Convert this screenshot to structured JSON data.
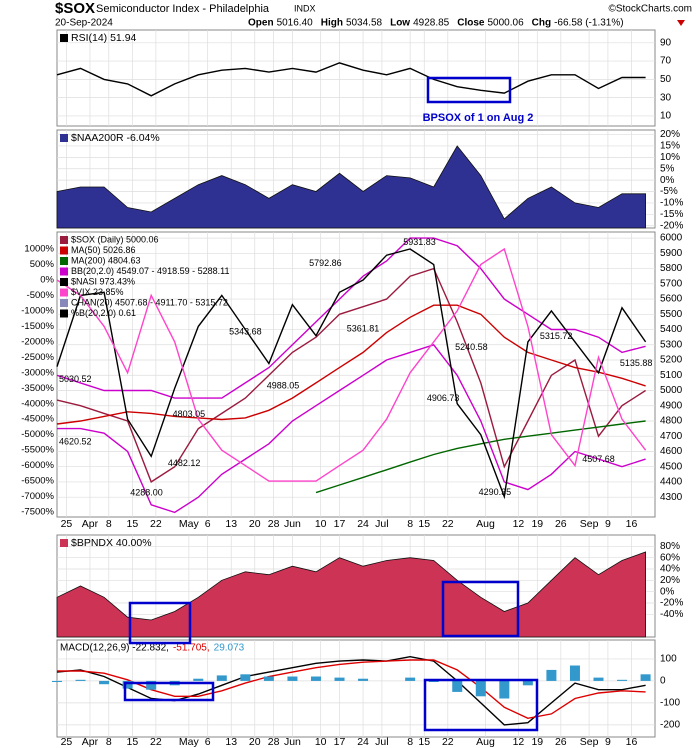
{
  "header": {
    "symbol": "$SOX",
    "name": "Semiconductor Index - Philadelphia",
    "exchange": "INDX",
    "date": "20-Sep-2024",
    "credit": "©StockCharts.com",
    "quote": [
      {
        "label": "Open",
        "value": "5016.40"
      },
      {
        "label": "High",
        "value": "5034.58"
      },
      {
        "label": "Low",
        "value": "4928.85"
      },
      {
        "label": "Close",
        "value": "5000.06"
      },
      {
        "label": "Chg",
        "value": "-66.58 (-1.31%)"
      }
    ]
  },
  "chart_data": {
    "x": [
      0,
      5,
      10,
      15,
      20,
      25,
      30,
      35,
      40,
      45,
      50,
      55,
      60,
      65,
      70,
      75,
      80,
      85,
      90,
      95,
      100,
      105,
      110,
      115,
      120,
      125
    ],
    "xlim": [
      0,
      127
    ],
    "xticks": [
      {
        "value": 2,
        "label": "25"
      },
      {
        "value": 7,
        "label": "Apr"
      },
      {
        "value": 11,
        "label": "8"
      },
      {
        "value": 16,
        "label": "15"
      },
      {
        "value": 21,
        "label": "22"
      },
      {
        "value": 28,
        "label": "May"
      },
      {
        "value": 32,
        "label": "6"
      },
      {
        "value": 37,
        "label": "13"
      },
      {
        "value": 42,
        "label": "20"
      },
      {
        "value": 46,
        "label": "28"
      },
      {
        "value": 50,
        "label": "Jun"
      },
      {
        "value": 56,
        "label": "10"
      },
      {
        "value": 60,
        "label": "17"
      },
      {
        "value": 65,
        "label": "24"
      },
      {
        "value": 69,
        "label": "Jul"
      },
      {
        "value": 75,
        "label": "8"
      },
      {
        "value": 78,
        "label": "15"
      },
      {
        "value": 83,
        "label": "22"
      },
      {
        "value": 91,
        "label": "Aug"
      },
      {
        "value": 98,
        "label": "12"
      },
      {
        "value": 102,
        "label": "19"
      },
      {
        "value": 107,
        "label": "26"
      },
      {
        "value": 113,
        "label": "Sep"
      },
      {
        "value": 117,
        "label": "9"
      },
      {
        "value": 122,
        "label": "16"
      }
    ],
    "panels": [
      {
        "type": "line",
        "annotation": "BPSOX of 1 on Aug 2",
        "ylim": [
          -1,
          104
        ],
        "yticks": [
          90,
          70,
          50,
          30,
          10
        ],
        "series": [
          {
            "name": "RSI(14) 51.94",
            "color": "#000000",
            "values": [
              55,
              62,
              50,
              45,
              32,
              45,
              55,
              60,
              62,
              58,
              62,
              58,
              68,
              60,
              55,
              62,
              50,
              42,
              38,
              35,
              48,
              55,
              55,
              40,
              52,
              52
            ]
          }
        ]
      },
      {
        "type": "area",
        "ylim": [
          -21,
          22
        ],
        "yticks": [
          {
            "value": 20,
            "label": "20%"
          },
          {
            "value": 15,
            "label": "15%"
          },
          {
            "value": 10,
            "label": "10%"
          },
          {
            "value": 5,
            "label": "5%"
          },
          {
            "value": 0,
            "label": "0%"
          },
          {
            "value": -5,
            "label": "-5%"
          },
          {
            "value": -10,
            "label": "-10%"
          },
          {
            "value": -15,
            "label": "-15%"
          },
          {
            "value": -20,
            "label": "-20%"
          }
        ],
        "series": [
          {
            "name": "$NAA200R -6.04%",
            "color": "#2e3192",
            "values": [
              -5,
              -3,
              -3,
              -12,
              -14,
              -8,
              -2,
              2,
              -2,
              -8,
              -2,
              -5,
              3,
              -5,
              2,
              1,
              -3,
              15,
              2,
              -17,
              -8,
              -3,
              -10,
              -12,
              -6,
              -6
            ]
          }
        ]
      },
      {
        "type": "line",
        "ylim": [
          4170,
          6040
        ],
        "yticks": [
          6000,
          5900,
          5800,
          5700,
          5600,
          5500,
          5400,
          5300,
          5200,
          5100,
          5000,
          4900,
          4800,
          4700,
          4600,
          4500,
          4400,
          4300
        ],
        "y2lim": [
          -7660,
          1550
        ],
        "y2ticks": [
          {
            "value": 1000,
            "label": "1000%"
          },
          {
            "value": 500,
            "label": "500%"
          },
          {
            "value": 0,
            "label": "0%"
          },
          {
            "value": -500,
            "label": "-500%"
          },
          {
            "value": -1000,
            "label": "-1000%"
          },
          {
            "value": -1500,
            "label": "-1500%"
          },
          {
            "value": -2000,
            "label": "-2000%"
          },
          {
            "value": -2500,
            "label": "-2500%"
          },
          {
            "value": -3000,
            "label": "-3000%"
          },
          {
            "value": -3500,
            "label": "-3500%"
          },
          {
            "value": -4000,
            "label": "-4000%"
          },
          {
            "value": -4500,
            "label": "-4500%"
          },
          {
            "value": -5000,
            "label": "-5000%"
          },
          {
            "value": -5500,
            "label": "-5500%"
          },
          {
            "value": -6000,
            "label": "-6000%"
          },
          {
            "value": -6500,
            "label": "-6500%"
          },
          {
            "value": -7000,
            "label": "-7000%"
          },
          {
            "value": -7500,
            "label": "-7500%"
          }
        ],
        "series": [
          {
            "name": "$SOX (Daily) 5000.06",
            "color": "#9b1b3f",
            "values": [
              4937,
              4900,
              4850,
              4800,
              4400,
              4500,
              4750,
              4850,
              4950,
              5100,
              5250,
              5350,
              5500,
              5550,
              5600,
              5750,
              5800,
              5450,
              5050,
              4500,
              4800,
              5100,
              5200,
              4700,
              4900,
              5000
            ]
          },
          {
            "name": "MA(50) 5026.86",
            "color": "#cc0000",
            "values": [
              4780,
              4800,
              4830,
              4860,
              4850,
              4830,
              4820,
              4810,
              4820,
              4870,
              4950,
              5050,
              5150,
              5250,
              5380,
              5480,
              5560,
              5560,
              5500,
              5350,
              5250,
              5200,
              5150,
              5120,
              5080,
              5030
            ]
          },
          {
            "name": "MA(200) 4804.63",
            "color": "#006600",
            "values": [
              null,
              null,
              null,
              null,
              null,
              null,
              null,
              null,
              null,
              null,
              null,
              4330,
              4380,
              4430,
              4480,
              4530,
              4580,
              4620,
              4650,
              4680,
              4700,
              4720,
              4740,
              4760,
              4780,
              4800
            ]
          },
          {
            "name": "BB(20,2.0) 4549.07 - 4918.59 - 5288.11",
            "color": "#cc00cc",
            "values": [
              5100,
              5050,
              5000,
              5000,
              5000,
              4950,
              4950,
              4950,
              5050,
              5150,
              5300,
              5450,
              5600,
              5750,
              5850,
              6000,
              6000,
              5950,
              5800,
              5600,
              5500,
              5400,
              5400,
              5350,
              5250,
              5290
            ]
          },
          {
            "color": "#cc00cc",
            "values": [
              4750,
              4750,
              4720,
              4600,
              4250,
              4200,
              4300,
              4450,
              4550,
              4650,
              4800,
              4900,
              5000,
              5100,
              5200,
              5250,
              5300,
              5100,
              4800,
              4400,
              4350,
              4450,
              4600,
              4550,
              4500,
              4550
            ]
          },
          {
            "name": "$NASI 973.43%",
            "color": "#000000",
            "axis": "y2",
            "values": [
              -2800,
              -500,
              -400,
              -4500,
              -5700,
              -3500,
              -1500,
              -500,
              -1600,
              -2700,
              -800,
              -1800,
              -400,
              0,
              800,
              1000,
              500,
              -4000,
              -5000,
              -7000,
              -2000,
              -1000,
              -2000,
              -3000,
              -900,
              -2000
            ]
          },
          {
            "name": "$VIX 23.85%",
            "color": "#ff44cc",
            "axis": "y2",
            "values": [
              0,
              -500,
              -1500,
              -3000,
              -500,
              -2000,
              -4500,
              -5500,
              -6000,
              -6500,
              -6500,
              -6500,
              -6000,
              -5500,
              -4500,
              -3000,
              -2000,
              -1000,
              500,
              1000,
              -1500,
              -5000,
              -6000,
              -2500,
              -4500,
              -5500
            ]
          }
        ],
        "indicators": [
          {
            "label": "CHAN(20) 4507.68 - 4911.70 - 5315.72",
            "color": "#8888bb"
          },
          {
            "label": "%B(20,2.0) 0.61",
            "color": "#000000"
          }
        ],
        "annotations": [
          {
            "x": 0,
            "value": 5030.52
          },
          {
            "x": 0,
            "value": 4620.52
          },
          {
            "x": 19,
            "value": 4288,
            "label": "4288.00"
          },
          {
            "x": 28,
            "value": 4803.05
          },
          {
            "x": 27,
            "value": 4482.12
          },
          {
            "x": 48,
            "value": 4988.05
          },
          {
            "x": 40,
            "value": 5343.68
          },
          {
            "x": 57,
            "value": 5792.86
          },
          {
            "x": 65,
            "value": 5361.81
          },
          {
            "x": 77,
            "value": 5931.83
          },
          {
            "x": 88,
            "value": 5240.58
          },
          {
            "x": 82,
            "value": 4906.73
          },
          {
            "x": 93,
            "value": 4290.35
          },
          {
            "x": 106,
            "value": 5315.72
          },
          {
            "x": 123,
            "value": 5135.88
          },
          {
            "x": 115,
            "value": 4507.68
          }
        ]
      },
      {
        "type": "area",
        "ylim": [
          -80,
          100
        ],
        "yticks": [
          {
            "value": 80,
            "label": "80%"
          },
          {
            "value": 60,
            "label": "60%"
          },
          {
            "value": 40,
            "label": "40%"
          },
          {
            "value": 20,
            "label": "20%"
          },
          {
            "value": 0,
            "label": "0%"
          },
          {
            "value": -20,
            "label": "-20%"
          },
          {
            "value": -40,
            "label": "-40%"
          }
        ],
        "series": [
          {
            "name": "$BPNDX 40.00%",
            "color": "#cc3355",
            "values": [
              -10,
              10,
              -10,
              -45,
              -50,
              -35,
              -10,
              20,
              35,
              30,
              45,
              35,
              60,
              45,
              55,
              60,
              55,
              20,
              -10,
              -35,
              -20,
              20,
              60,
              30,
              55,
              70
            ]
          }
        ]
      },
      {
        "type": "line",
        "ylim": [
          -255,
          186
        ],
        "yticks": [
          100,
          0,
          -100,
          -200
        ],
        "series": [
          {
            "name": "MACD(12,26,9) -22.832,",
            "color": "#000000",
            "values": [
              40,
              50,
              20,
              -30,
              -80,
              -90,
              -60,
              -20,
              20,
              40,
              60,
              80,
              90,
              95,
              90,
              110,
              90,
              0,
              -100,
              -200,
              -190,
              -100,
              -10,
              -40,
              -40,
              -20
            ]
          },
          {
            "name": "-51.705,",
            "color": "#dd0000",
            "values": [
              45,
              45,
              35,
              5,
              -40,
              -70,
              -70,
              -45,
              -10,
              20,
              40,
              60,
              75,
              85,
              90,
              95,
              95,
              50,
              -30,
              -120,
              -170,
              -150,
              -80,
              -55,
              -45,
              -50
            ]
          },
          {
            "name": "29.073",
            "color": "#3399cc",
            "type": "bar",
            "values": [
              -5,
              5,
              -15,
              -35,
              -40,
              -20,
              10,
              25,
              30,
              20,
              20,
              20,
              15,
              10,
              0,
              15,
              -5,
              -50,
              -70,
              -80,
              -20,
              50,
              70,
              15,
              5,
              30
            ]
          }
        ]
      }
    ]
  }
}
